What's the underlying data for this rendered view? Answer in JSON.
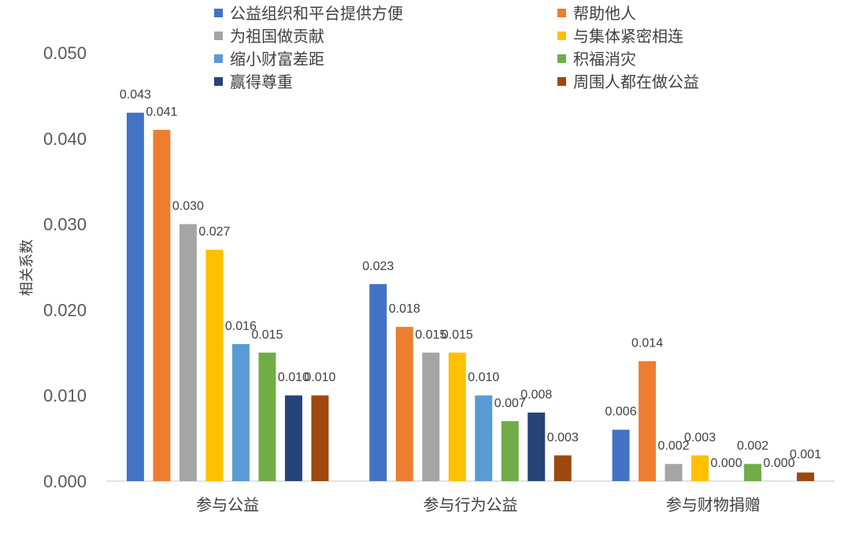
{
  "chart_data": {
    "type": "bar",
    "title": "",
    "xlabel": "",
    "ylabel": "相关系数",
    "ylim": [
      0,
      0.05
    ],
    "yticks": [
      "0.000",
      "0.010",
      "0.020",
      "0.030",
      "0.040",
      "0.050"
    ],
    "grid": false,
    "legend_position": "top",
    "categories": [
      "参与公益",
      "参与行为公益",
      "参与财物捐赠"
    ],
    "series": [
      {
        "name": "公益组织和平台提供方便",
        "color": "#4472C4",
        "values": [
          0.043,
          0.023,
          0.006
        ],
        "labels": [
          "0.043",
          "0.023",
          "0.006"
        ]
      },
      {
        "name": "帮助他人",
        "color": "#ED7D31",
        "values": [
          0.041,
          0.018,
          0.014
        ],
        "labels": [
          "0.041",
          "0.018",
          "0.014"
        ]
      },
      {
        "name": "为祖国做贡献",
        "color": "#A5A5A5",
        "values": [
          0.03,
          0.015,
          0.002
        ],
        "labels": [
          "0.030",
          "0.015",
          "0.002"
        ]
      },
      {
        "name": "与集体紧密相连",
        "color": "#FFC000",
        "values": [
          0.027,
          0.015,
          0.003
        ],
        "labels": [
          "0.027",
          "0.015",
          "0.003"
        ]
      },
      {
        "name": "缩小财富差距",
        "color": "#5B9BD5",
        "values": [
          0.016,
          0.01,
          0.0
        ],
        "labels": [
          "0.016",
          "0.010",
          "0.000"
        ]
      },
      {
        "name": "积福消灾",
        "color": "#70AD47",
        "values": [
          0.015,
          0.007,
          0.002
        ],
        "labels": [
          "0.015",
          "0.007",
          "0.002"
        ]
      },
      {
        "name": "赢得尊重",
        "color": "#264478",
        "values": [
          0.01,
          0.008,
          0.0
        ],
        "labels": [
          "0.010",
          "0.008",
          "0.000"
        ]
      },
      {
        "name": "周围人都在做公益",
        "color": "#9E480E",
        "values": [
          0.01,
          0.003,
          0.001
        ],
        "labels": [
          "0.010",
          "0.003",
          "0.001"
        ]
      }
    ]
  }
}
